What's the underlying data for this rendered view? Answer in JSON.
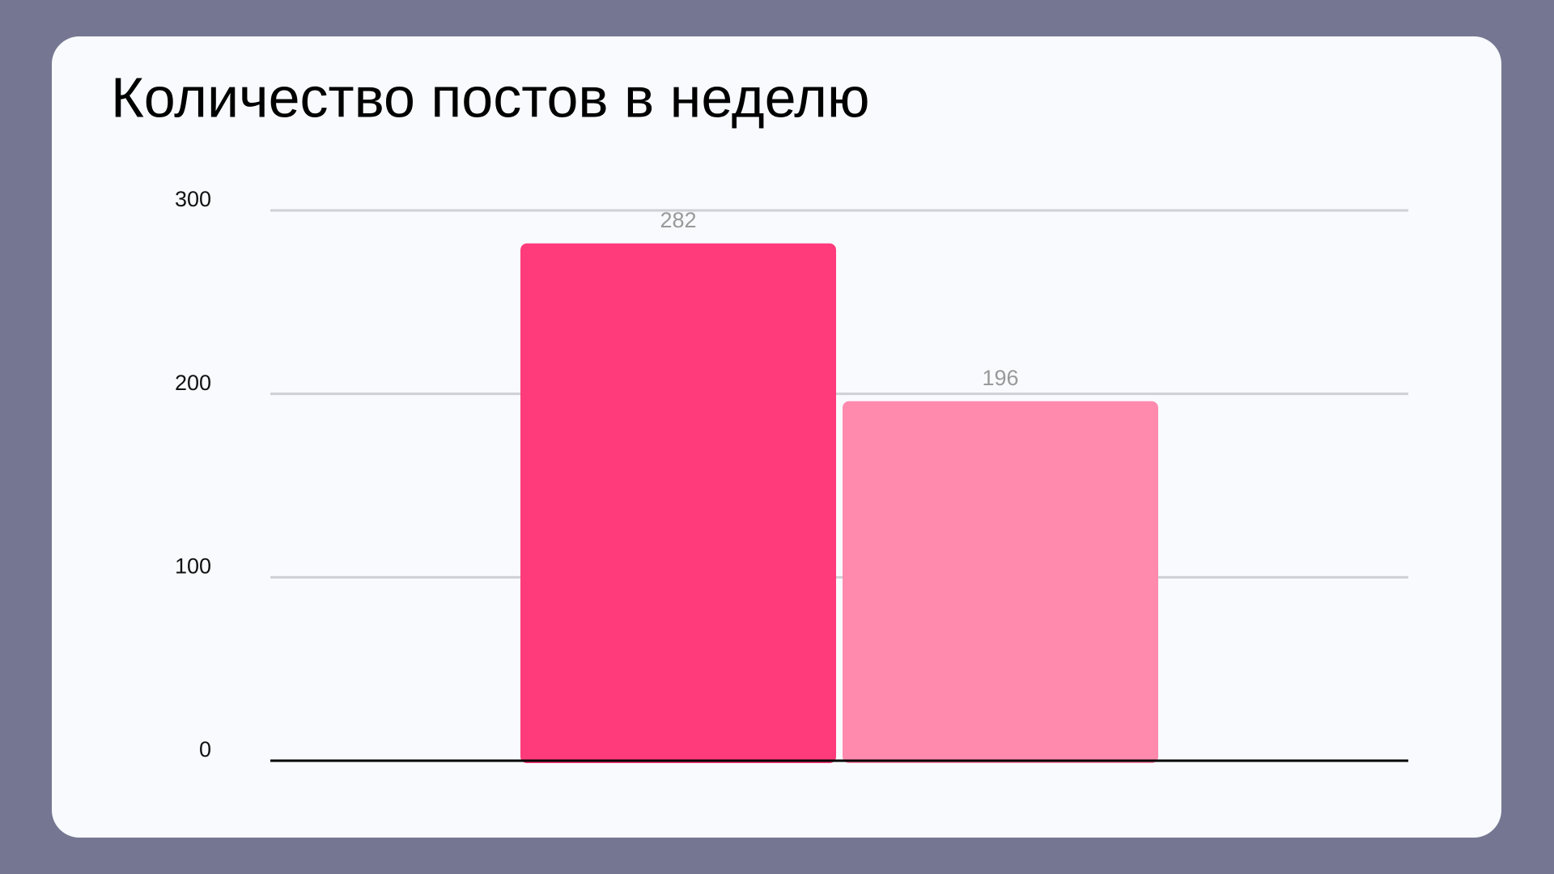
{
  "chart_data": {
    "type": "bar",
    "title": "Количество постов в неделю",
    "categories": [
      null,
      null
    ],
    "values": [
      282,
      196
    ],
    "colors": [
      "#ff3b7b",
      "#ff8aae"
    ],
    "ylim": [
      0,
      300
    ],
    "yticks": [
      0,
      100,
      200,
      300
    ],
    "grid": true
  }
}
